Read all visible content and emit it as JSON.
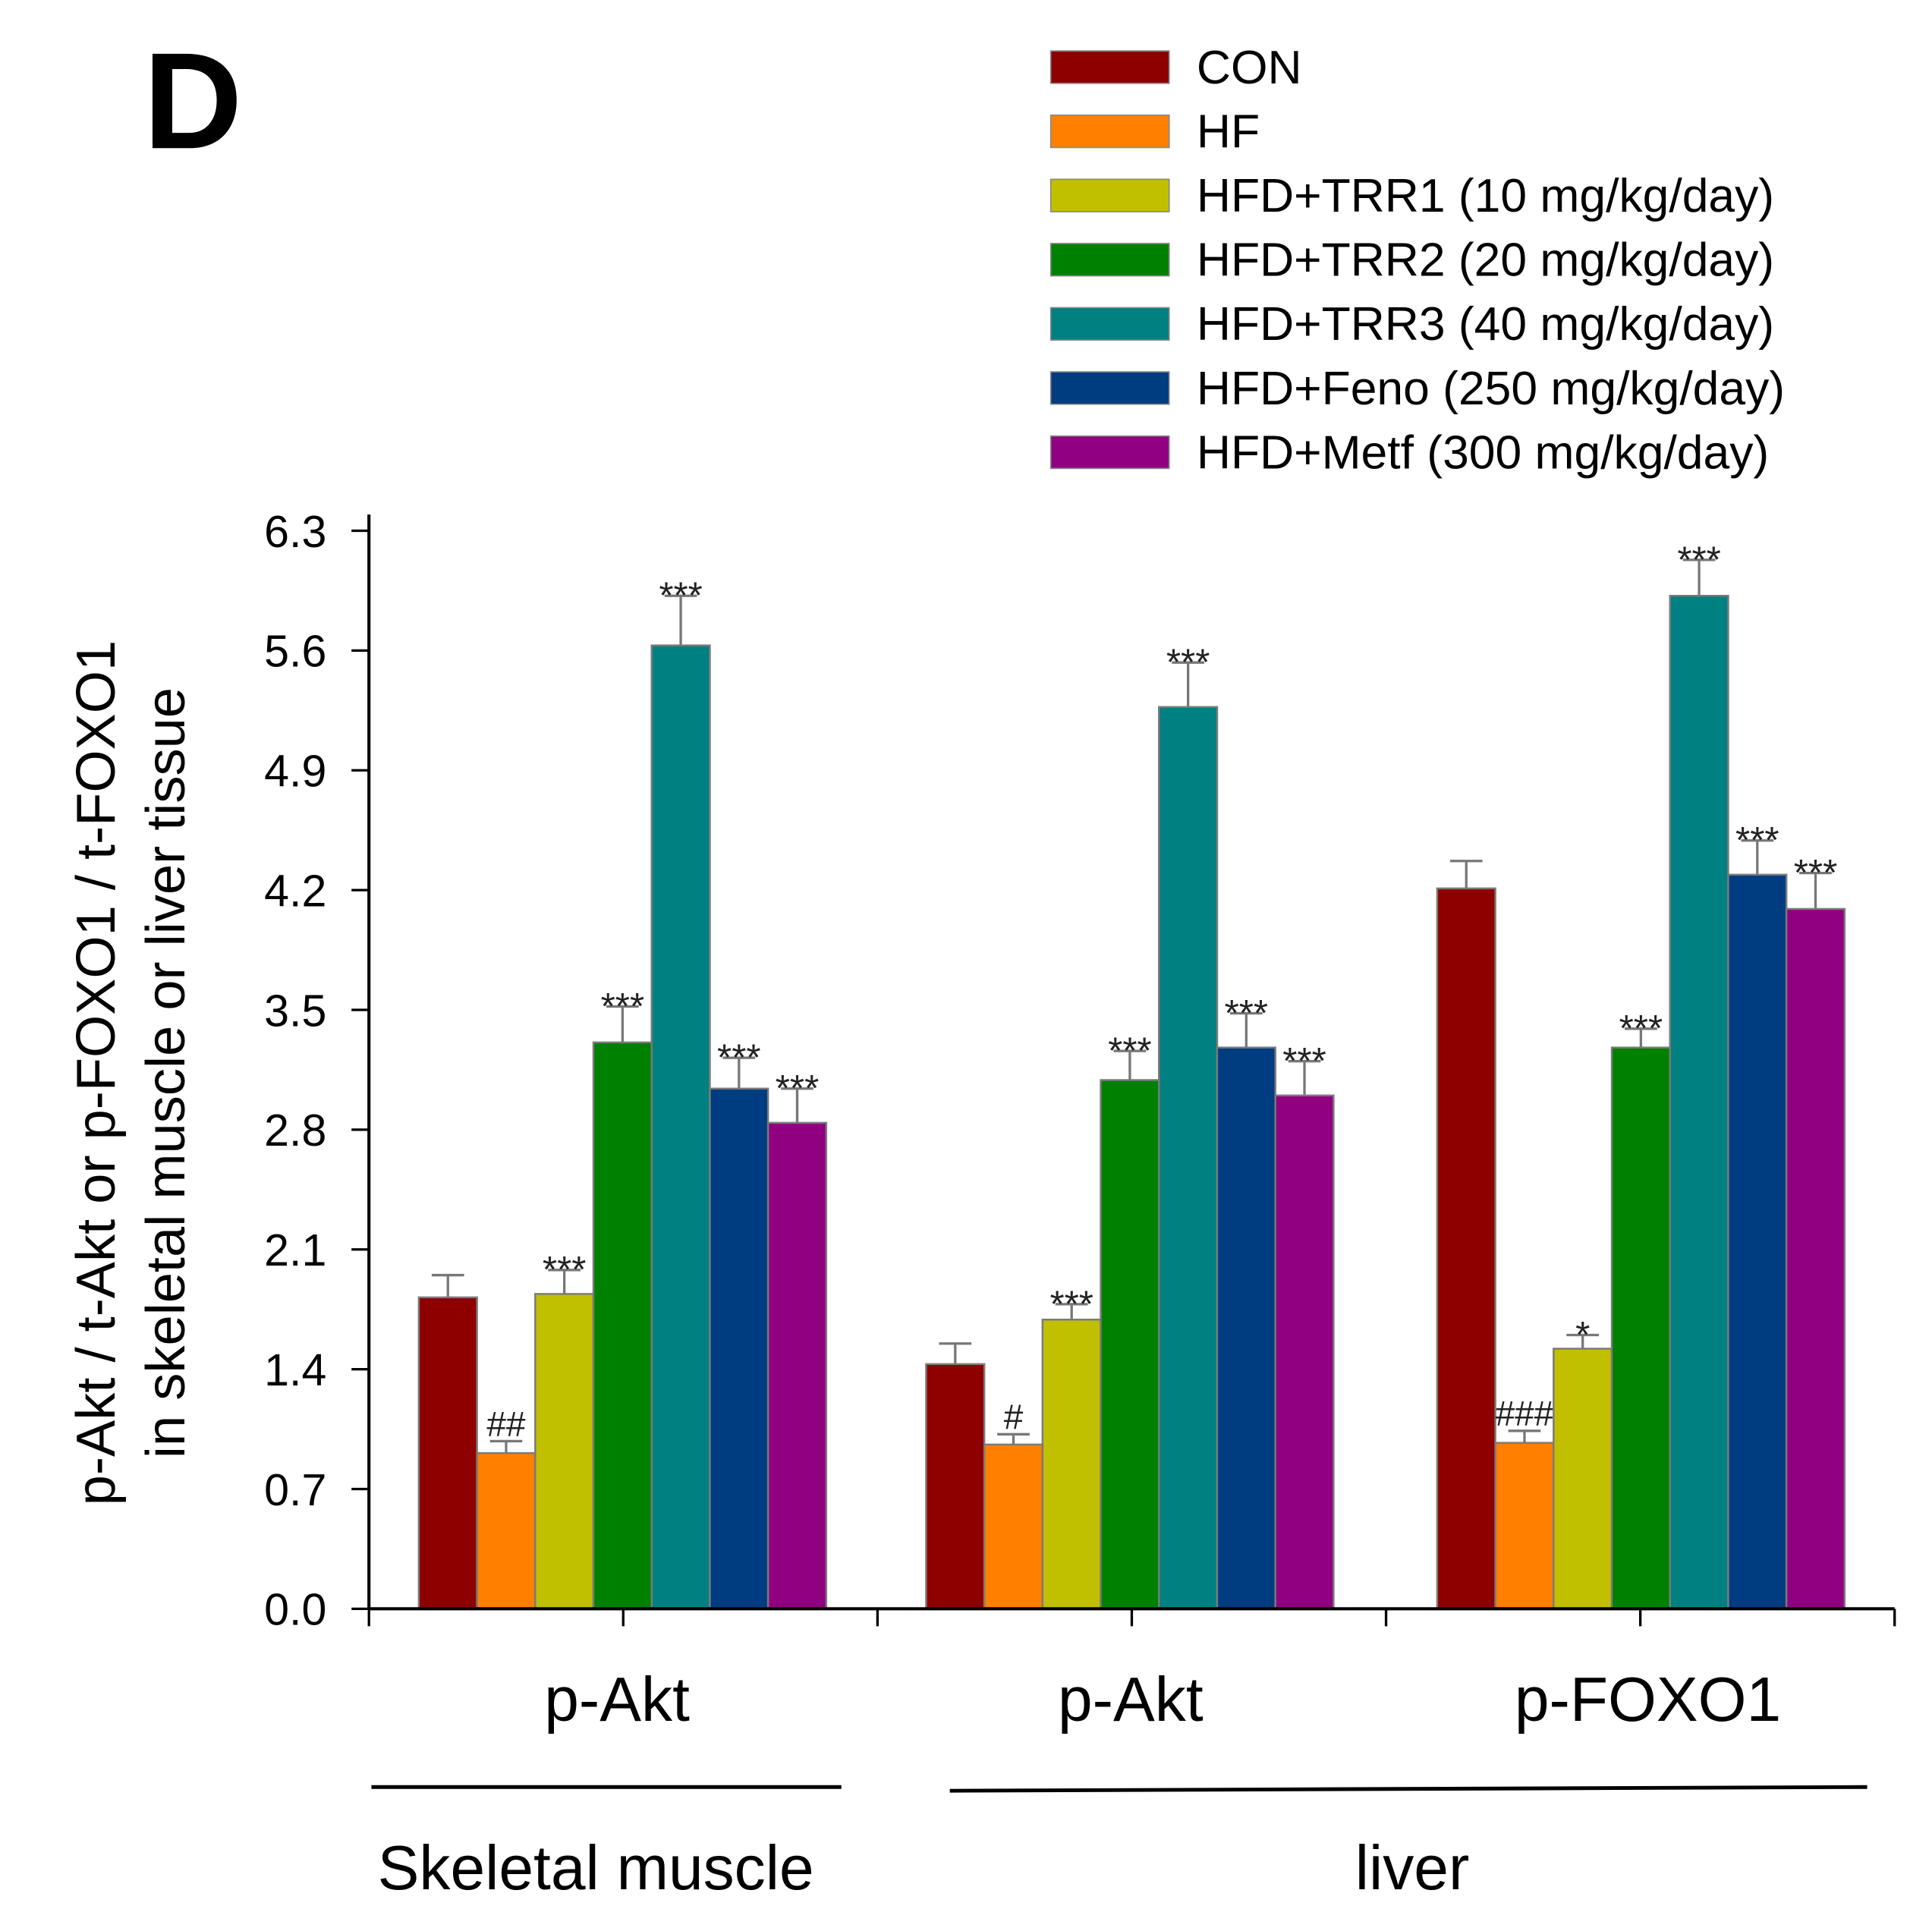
{
  "chart_data": {
    "type": "bar",
    "panel_label": "D",
    "ylabel_line1": "p-Akt / t-Akt or p-FOXO1 / t-FOXO1",
    "ylabel_line2": "in skeletal muscle or liver tissue",
    "ylim": [
      0,
      6.3
    ],
    "yticks": [
      "0.0",
      "0.7",
      "1.4",
      "2.1",
      "2.8",
      "3.5",
      "4.2",
      "4.9",
      "5.6",
      "6.3"
    ],
    "grid": false,
    "legend_position": "top-right",
    "categories": [
      "p-Akt",
      "p-Akt",
      "p-FOXO1"
    ],
    "tissue_groups": [
      {
        "label": "Skeletal muscle",
        "categories": [
          0
        ]
      },
      {
        "label": "liver",
        "categories": [
          1,
          2
        ]
      }
    ],
    "series": [
      {
        "name": "CON",
        "color": "#8e0000",
        "values": [
          1.82,
          1.43,
          4.21
        ],
        "errors": [
          0.13,
          0.12,
          0.16
        ],
        "annotations": [
          "",
          "",
          ""
        ]
      },
      {
        "name": "HF",
        "color": "#ff8000",
        "values": [
          0.91,
          0.96,
          0.97
        ],
        "errors": [
          0.07,
          0.06,
          0.07
        ],
        "annotations": [
          "##",
          "#",
          "###"
        ]
      },
      {
        "name": "HFD+TRR1 (10 mg/kg/day)",
        "color": "#c0c000",
        "values": [
          1.84,
          1.69,
          1.52
        ],
        "errors": [
          0.14,
          0.09,
          0.08
        ],
        "annotations": [
          "***",
          "***",
          "*"
        ]
      },
      {
        "name": "HFD+TRR2 (20 mg/kg/day)",
        "color": "#008000",
        "values": [
          3.31,
          3.09,
          3.28
        ],
        "errors": [
          0.21,
          0.17,
          0.11
        ],
        "annotations": [
          "***",
          "***",
          "***"
        ]
      },
      {
        "name": "HFD+TRR3 (40 mg/kg/day)",
        "color": "#008080",
        "values": [
          5.63,
          5.27,
          5.92
        ],
        "errors": [
          0.29,
          0.26,
          0.21
        ],
        "annotations": [
          "***",
          "***",
          "***"
        ]
      },
      {
        "name": "HFD+Feno (250 mg/kg/day)",
        "color": "#003c80",
        "values": [
          3.04,
          3.28,
          4.29
        ],
        "errors": [
          0.18,
          0.2,
          0.2
        ],
        "annotations": [
          "***",
          "***",
          "***"
        ]
      },
      {
        "name": "HFD+Metf (300 mg/kg/day)",
        "color": "#900080",
        "values": [
          2.84,
          3.0,
          4.09
        ],
        "errors": [
          0.2,
          0.2,
          0.21
        ],
        "annotations": [
          "***",
          "***",
          "***"
        ]
      }
    ]
  }
}
